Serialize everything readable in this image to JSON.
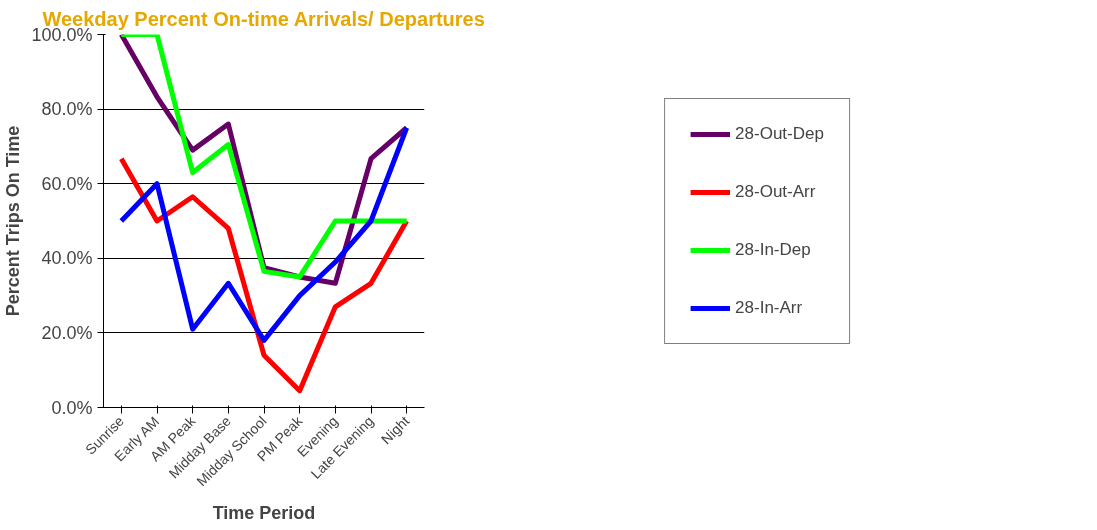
{
  "chart_data": {
    "type": "line",
    "title": "Weekday Percent On-time Arrivals/ Departures",
    "xlabel": "Time Period",
    "ylabel": "Percent Trips On Time",
    "categories": [
      "Sunrise",
      "Early AM",
      "AM Peak",
      "Midday Base",
      "Midday School",
      "PM Peak",
      "Evening",
      "Late Evening",
      "Night"
    ],
    "series": [
      {
        "name": "28-Out-Dep",
        "color": "#660066",
        "values": [
          100,
          83.3,
          69,
          76,
          37.5,
          35,
          33.3,
          66.7,
          75
        ]
      },
      {
        "name": "28-Out-Arr",
        "color": "#ff0000",
        "values": [
          66.7,
          50,
          56.5,
          48,
          14,
          4.5,
          27,
          33.3,
          50
        ]
      },
      {
        "name": "28-In-Dep",
        "color": "#00ff00",
        "values": [
          100,
          100,
          63,
          70.5,
          36.5,
          35,
          50,
          50,
          50
        ]
      },
      {
        "name": "28-In-Arr",
        "color": "#0000ff",
        "values": [
          50,
          60,
          21,
          33.3,
          18,
          30,
          39,
          50,
          75
        ]
      }
    ],
    "ylim": [
      0,
      100
    ],
    "yticks": [
      {
        "value": 0,
        "label": "0.0%"
      },
      {
        "value": 20,
        "label": "20.0%"
      },
      {
        "value": 40,
        "label": "40.0%"
      },
      {
        "value": 60,
        "label": "60.0%"
      },
      {
        "value": 80,
        "label": "80.0%"
      },
      {
        "value": 100,
        "label": "100.0%"
      }
    ],
    "grid": "y",
    "legend": "right",
    "marker": "none",
    "line_style": "solid"
  }
}
